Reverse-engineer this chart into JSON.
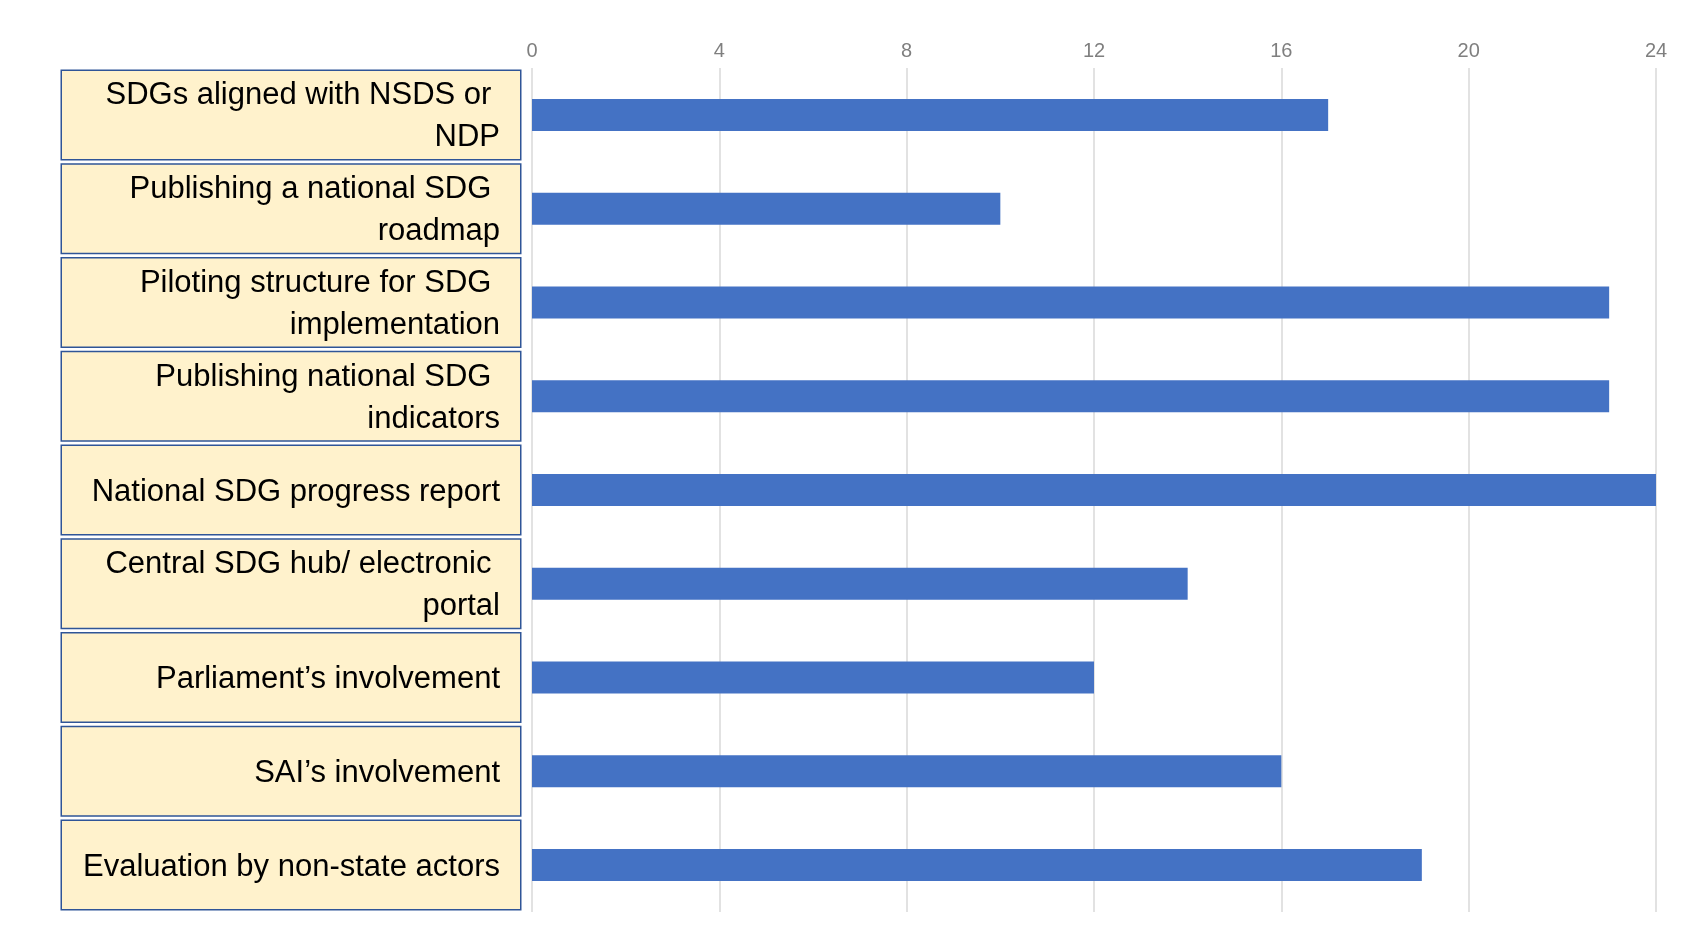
{
  "chart_data": {
    "type": "bar",
    "orientation": "horizontal",
    "categories": [
      "SDGs aligned with NSDS or NDP",
      "Publishing a national SDG roadmap",
      "Piloting structure for SDG implementation",
      "Publishing national SDG indicators",
      "National SDG progress report",
      "Central SDG hub/ electronic portal",
      "Parliament’s involvement",
      "SAI’s involvement",
      "Evaluation by non-state actors"
    ],
    "values": [
      17,
      10,
      23,
      23,
      24,
      14,
      12,
      16,
      19
    ],
    "color": "#4472c4",
    "xlim": [
      0,
      24
    ],
    "xticks": [
      0,
      4,
      8,
      12,
      16,
      20,
      24
    ],
    "grid": "x"
  }
}
